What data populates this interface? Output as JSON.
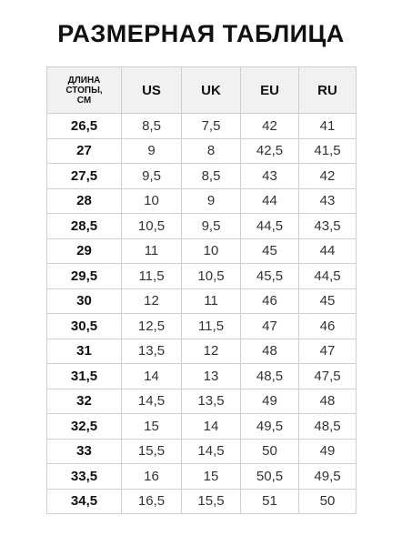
{
  "title": "РАЗМЕРНАЯ ТАБЛИЦА",
  "table": {
    "header": [
      "ДЛИНА\nСТОПЫ,\nСМ",
      "US",
      "UK",
      "EU",
      "RU"
    ],
    "rows": [
      [
        "26,5",
        "8,5",
        "7,5",
        "42",
        "41"
      ],
      [
        "27",
        "9",
        "8",
        "42,5",
        "41,5"
      ],
      [
        "27,5",
        "9,5",
        "8,5",
        "43",
        "42"
      ],
      [
        "28",
        "10",
        "9",
        "44",
        "43"
      ],
      [
        "28,5",
        "10,5",
        "9,5",
        "44,5",
        "43,5"
      ],
      [
        "29",
        "11",
        "10",
        "45",
        "44"
      ],
      [
        "29,5",
        "11,5",
        "10,5",
        "45,5",
        "44,5"
      ],
      [
        "30",
        "12",
        "11",
        "46",
        "45"
      ],
      [
        "30,5",
        "12,5",
        "11,5",
        "47",
        "46"
      ],
      [
        "31",
        "13,5",
        "12",
        "48",
        "47"
      ],
      [
        "31,5",
        "14",
        "13",
        "48,5",
        "47,5"
      ],
      [
        "32",
        "14,5",
        "13,5",
        "49",
        "48"
      ],
      [
        "32,5",
        "15",
        "14",
        "49,5",
        "48,5"
      ],
      [
        "33",
        "15,5",
        "14,5",
        "50",
        "49"
      ],
      [
        "33,5",
        "16",
        "15",
        "50,5",
        "49,5"
      ],
      [
        "34,5",
        "16,5",
        "15,5",
        "51",
        "50"
      ]
    ]
  }
}
